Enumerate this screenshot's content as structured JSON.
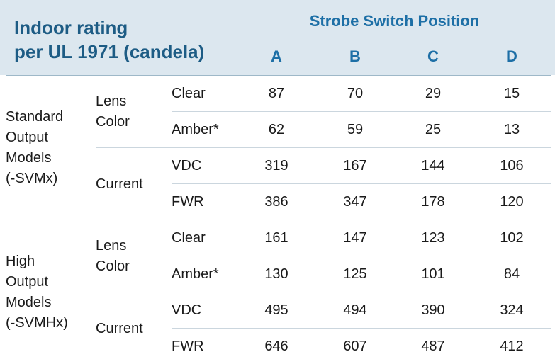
{
  "table": {
    "title_lines": [
      "Indoor rating",
      "per UL 1971 (candela)"
    ],
    "header": "Strobe Switch Position",
    "columns": [
      "A",
      "B",
      "C",
      "D"
    ],
    "groups": [
      {
        "label_lines": [
          "Standard",
          "Output",
          "Models",
          "(-SVMx)"
        ],
        "subgroups": [
          {
            "label_lines": [
              "Lens",
              "Color"
            ],
            "rows": [
              {
                "label": "Clear",
                "values": [
                  "87",
                  "70",
                  "29",
                  "15"
                ]
              },
              {
                "label": "Amber*",
                "values": [
                  "62",
                  "59",
                  "25",
                  "13"
                ]
              }
            ]
          },
          {
            "label_lines": [
              "Current"
            ],
            "rows": [
              {
                "label": "VDC",
                "values": [
                  "319",
                  "167",
                  "144",
                  "106"
                ]
              },
              {
                "label": "FWR",
                "values": [
                  "386",
                  "347",
                  "178",
                  "120"
                ]
              }
            ]
          }
        ]
      },
      {
        "label_lines": [
          "High",
          "Output",
          "Models",
          "(-SVMHx)"
        ],
        "subgroups": [
          {
            "label_lines": [
              "Lens",
              "Color"
            ],
            "rows": [
              {
                "label": "Clear",
                "values": [
                  "161",
                  "147",
                  "123",
                  "102"
                ]
              },
              {
                "label": "Amber*",
                "values": [
                  "130",
                  "125",
                  "101",
                  "84"
                ]
              }
            ]
          },
          {
            "label_lines": [
              "Current"
            ],
            "rows": [
              {
                "label": "VDC",
                "values": [
                  "495",
                  "494",
                  "390",
                  "324"
                ]
              },
              {
                "label": "FWR",
                "values": [
                  "646",
                  "607",
                  "487",
                  "412"
                ]
              }
            ]
          }
        ]
      }
    ]
  }
}
